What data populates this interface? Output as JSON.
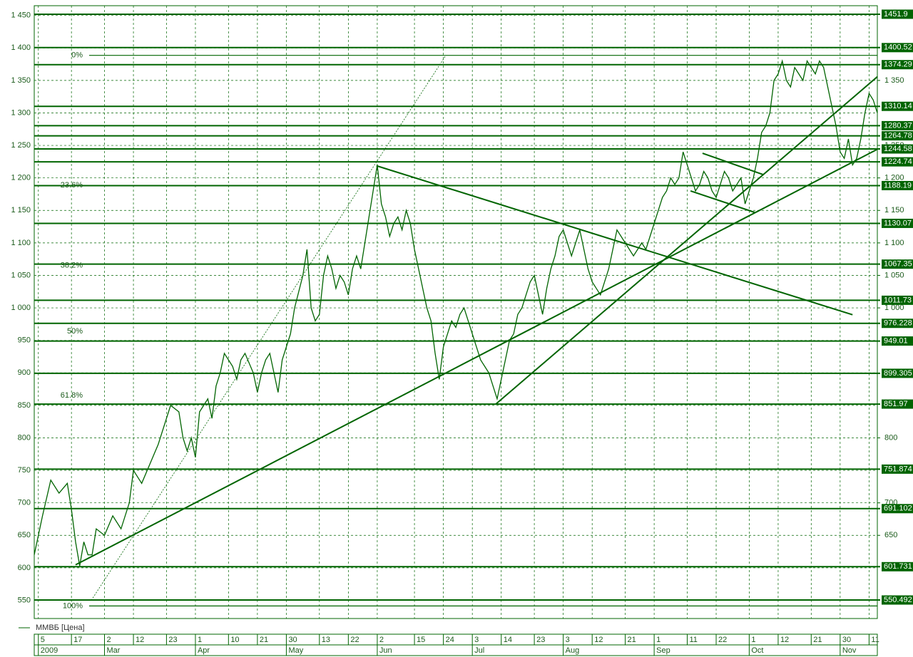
{
  "chart_data": {
    "type": "line",
    "series": [
      {
        "name": "ММВБ [Цена]",
        "color": "#006400",
        "x": [
          0,
          2,
          4,
          6,
          8,
          9,
          10,
          11,
          12,
          13,
          14,
          15,
          17,
          19,
          21,
          23,
          24,
          26,
          28,
          30,
          32,
          33,
          35,
          36,
          37,
          38,
          39,
          40,
          42,
          43,
          44,
          45,
          46,
          48,
          49,
          50,
          51,
          53,
          54,
          55,
          56,
          57,
          58,
          59,
          60,
          62,
          63,
          65,
          66,
          67,
          68,
          69,
          70,
          71,
          72,
          73,
          74,
          75,
          76,
          77,
          78,
          79,
          80,
          81,
          82,
          83,
          84,
          85,
          86,
          87,
          88,
          89,
          90,
          91,
          92,
          93,
          94,
          95,
          96,
          97,
          98,
          99,
          100,
          101,
          102,
          103,
          104,
          105,
          106,
          107,
          108,
          109,
          110,
          111,
          112,
          113,
          114,
          115,
          116,
          117,
          118,
          119,
          120,
          121,
          122,
          123,
          124,
          125,
          126,
          127,
          128,
          129,
          130,
          131,
          132,
          133,
          134,
          135,
          136,
          137,
          138,
          139,
          140,
          141,
          142,
          143,
          144,
          145,
          146,
          147,
          148,
          149,
          150,
          151,
          152,
          153,
          154,
          155,
          156,
          157,
          158,
          159,
          160,
          161,
          162,
          163,
          164,
          165,
          166,
          167,
          168,
          169,
          170,
          171,
          172,
          173,
          174,
          175,
          176,
          177,
          178,
          179,
          180,
          181,
          182,
          183,
          184,
          185,
          186,
          187,
          188,
          189,
          190,
          191,
          192,
          193,
          194,
          195,
          196,
          197,
          198,
          199,
          200,
          201,
          202,
          203,
          204
        ],
        "values": [
          620,
          680,
          735,
          715,
          730,
          690,
          640,
          603,
          640,
          620,
          620,
          660,
          650,
          680,
          660,
          700,
          750,
          730,
          760,
          790,
          830,
          850,
          840,
          800,
          780,
          800,
          770,
          840,
          860,
          830,
          880,
          900,
          930,
          910,
          890,
          920,
          930,
          900,
          870,
          900,
          920,
          930,
          900,
          870,
          920,
          960,
          1000,
          1050,
          1090,
          1000,
          980,
          990,
          1050,
          1080,
          1060,
          1030,
          1050,
          1040,
          1020,
          1060,
          1080,
          1060,
          1100,
          1140,
          1180,
          1220,
          1160,
          1140,
          1110,
          1130,
          1140,
          1120,
          1150,
          1130,
          1090,
          1060,
          1030,
          1000,
          980,
          930,
          890,
          940,
          960,
          980,
          970,
          990,
          1000,
          980,
          960,
          940,
          920,
          910,
          900,
          880,
          860,
          890,
          920,
          950,
          960,
          990,
          1000,
          1020,
          1040,
          1050,
          1020,
          990,
          1030,
          1060,
          1080,
          1110,
          1120,
          1100,
          1080,
          1100,
          1120,
          1090,
          1060,
          1040,
          1030,
          1020,
          1040,
          1060,
          1090,
          1120,
          1110,
          1100,
          1090,
          1080,
          1090,
          1100,
          1090,
          1110,
          1130,
          1150,
          1170,
          1180,
          1200,
          1190,
          1200,
          1240,
          1220,
          1200,
          1180,
          1190,
          1210,
          1200,
          1180,
          1170,
          1190,
          1210,
          1200,
          1180,
          1190,
          1200,
          1160,
          1180,
          1200,
          1230,
          1270,
          1280,
          1300,
          1350,
          1360,
          1380,
          1350,
          1340,
          1370,
          1360,
          1350,
          1380,
          1370,
          1360,
          1380,
          1370,
          1340,
          1310,
          1280,
          1240,
          1230,
          1260,
          1220,
          1230,
          1260,
          1300,
          1330,
          1320,
          1300
        ]
      }
    ],
    "xlim": [
      0,
      204
    ],
    "ylim": [
      522,
      1465
    ],
    "yticks": [
      {
        "value": 1450,
        "label": "1 450"
      },
      {
        "value": 1400,
        "label": "1 400"
      },
      {
        "value": 1350,
        "label": "1 350"
      },
      {
        "value": 1300,
        "label": "1 300"
      },
      {
        "value": 1250,
        "label": "1 250"
      },
      {
        "value": 1200,
        "label": "1 200"
      },
      {
        "value": 1150,
        "label": "1 150"
      },
      {
        "value": 1100,
        "label": "1 100"
      },
      {
        "value": 1050,
        "label": "1 050"
      },
      {
        "value": 1000,
        "label": "1 000"
      },
      950,
      900,
      850,
      800,
      750,
      700,
      650,
      600,
      550
    ],
    "y2ticks": [
      {
        "value": 1350,
        "label": "1 350"
      },
      {
        "value": 1250,
        "label": "1 250"
      },
      {
        "value": 1200,
        "label": "1 200"
      },
      {
        "value": 1150,
        "label": "1 150"
      },
      {
        "value": 1100,
        "label": "1 100"
      },
      {
        "value": 1050,
        "label": "1 050"
      },
      {
        "value": 1000,
        "label": "1 000"
      },
      800,
      700,
      650
    ],
    "xticks": [
      {
        "value": 1,
        "label": "5"
      },
      {
        "value": 9,
        "label": "17"
      },
      {
        "value": 17,
        "label": "2"
      },
      {
        "value": 24,
        "label": "12"
      },
      {
        "value": 32,
        "label": "23"
      },
      {
        "value": 39,
        "label": "1"
      },
      {
        "value": 47,
        "label": "10"
      },
      {
        "value": 54,
        "label": "21"
      },
      {
        "value": 61,
        "label": "30"
      },
      {
        "value": 69,
        "label": "13"
      },
      {
        "value": 76,
        "label": "22"
      },
      {
        "value": 83,
        "label": "2"
      },
      {
        "value": 92,
        "label": "15"
      },
      {
        "value": 99,
        "label": "24"
      },
      {
        "value": 106,
        "label": "3"
      },
      {
        "value": 113,
        "label": "14"
      },
      {
        "value": 121,
        "label": "23"
      },
      {
        "value": 128,
        "label": "3"
      },
      {
        "value": 135,
        "label": "12"
      },
      {
        "value": 143,
        "label": "21"
      },
      {
        "value": 150,
        "label": "1"
      },
      {
        "value": 158,
        "label": "11"
      },
      {
        "value": 165,
        "label": "22"
      },
      {
        "value": 173,
        "label": "1"
      },
      {
        "value": 180,
        "label": "12"
      },
      {
        "value": 188,
        "label": "21"
      },
      {
        "value": 195,
        "label": "30"
      },
      {
        "value": 202,
        "label": "11"
      }
    ],
    "month_ticks": [
      {
        "value": 1,
        "label": "2009"
      },
      {
        "value": 17,
        "label": "Mar"
      },
      {
        "value": 39,
        "label": "Apr"
      },
      {
        "value": 61,
        "label": "May"
      },
      {
        "value": 83,
        "label": "Jun"
      },
      {
        "value": 106,
        "label": "Jul"
      },
      {
        "value": 128,
        "label": "Aug"
      },
      {
        "value": 150,
        "label": "Sep"
      },
      {
        "value": 173,
        "label": "Oct"
      },
      {
        "value": 195,
        "label": "Nov"
      }
    ],
    "levels": [
      1451.9,
      1400.52,
      1374.29,
      1310.14,
      1280.37,
      1264.78,
      1244.58,
      1224.74,
      1188.19,
      1130.07,
      1067.35,
      1011.73,
      976.228,
      949.01,
      899.305,
      851.97,
      751.874,
      691.102,
      601.731,
      550.492
    ],
    "trend_lines": [
      {
        "x": [
          10,
          204
        ],
        "y": [
          604.6,
          1244
        ]
      },
      {
        "x": [
          111.7,
          204
        ],
        "y": [
          852,
          1355.7
        ]
      },
      {
        "x": [
          82.8,
          198
        ],
        "y": [
          1218.7,
          989.5
        ]
      },
      {
        "x": [
          161.7,
          176.4
        ],
        "y": [
          1238,
          1205
        ]
      },
      {
        "x": [
          158.8,
          174.3
        ],
        "y": [
          1180,
          1147
        ]
      }
    ],
    "fib_line": {
      "x": [
        13.8,
        99.6
      ],
      "y": [
        550,
        1388.6
      ]
    },
    "fib_levels": [
      {
        "label": "0%",
        "value": 1388.6,
        "line": true
      },
      {
        "label": "23.6%",
        "value": 1188.6,
        "line": false
      },
      {
        "label": "38.2%",
        "value": 1065,
        "line": false
      },
      {
        "label": "50%",
        "value": 964,
        "line": false
      },
      {
        "label": "61.8%",
        "value": 865,
        "line": false
      },
      {
        "label": "100%",
        "value": 541.3,
        "line": true
      }
    ],
    "grid": true,
    "legend": "bottom-left"
  }
}
